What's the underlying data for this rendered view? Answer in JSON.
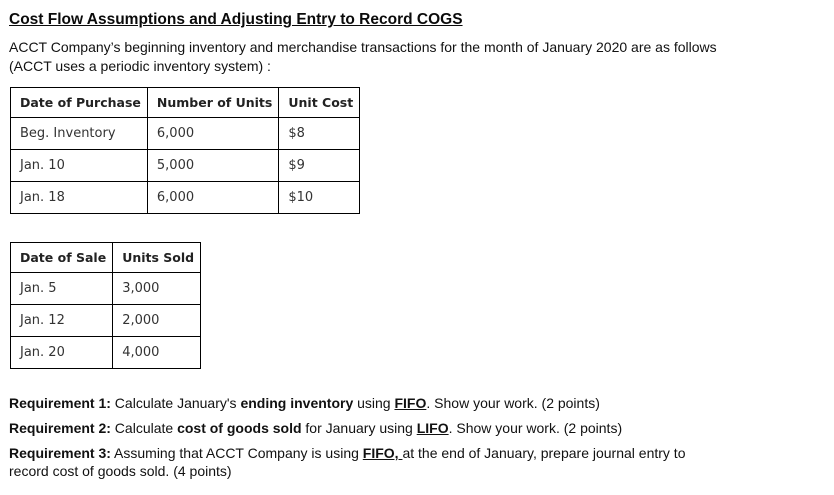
{
  "page": {
    "title": "Cost Flow Assumptions and Adjusting Entry to Record COGS"
  },
  "intro": {
    "segments": [
      {
        "t": "ACCT Company’s beginning inventory and merchandise transactions for the month of January 2020 are as follows"
      },
      {
        "t": "(ACCT uses a periodic inventory system) :",
        "nl": true
      }
    ]
  },
  "purchases_table": {
    "headers": [
      "Date of Purchase",
      "Number of Units",
      "Unit Cost"
    ],
    "rows": [
      [
        "Beg. Inventory",
        "6,000",
        "$8"
      ],
      [
        "Jan. 10",
        "5,000",
        "$9"
      ],
      [
        "Jan. 18",
        "6,000",
        "$10"
      ]
    ]
  },
  "sales_table": {
    "headers": [
      "Date of Sale",
      "Units Sold"
    ],
    "rows": [
      [
        "Jan. 5",
        "3,000"
      ],
      [
        "Jan. 12",
        "2,000"
      ],
      [
        "Jan. 20",
        "4,000"
      ]
    ]
  },
  "requirements": [
    {
      "segments": [
        {
          "t": "Requirement 1:",
          "b": true
        },
        {
          "t": " Calculate January's "
        },
        {
          "t": "ending inventory",
          "b": true
        },
        {
          "t": " using "
        },
        {
          "t": "FIFO",
          "b": true,
          "u": true
        },
        {
          "t": ". Show your work. (2 points)"
        }
      ]
    },
    {
      "segments": [
        {
          "t": "Requirement 2:",
          "b": true
        },
        {
          "t": " Calculate "
        },
        {
          "t": "cost of goods sold",
          "b": true
        },
        {
          "t": " for January using "
        },
        {
          "t": "LIFO",
          "b": true,
          "u": true
        },
        {
          "t": ". Show your work. (2 points)"
        }
      ]
    },
    {
      "segments": [
        {
          "t": "Requirement 3:",
          "b": true
        },
        {
          "t": " Assuming that ACCT Company is using "
        },
        {
          "t": "FIFO, ",
          "b": true,
          "u": true
        },
        {
          "t": "at the end of January, prepare journal entry to"
        },
        {
          "t": "record cost of goods sold. (4 points)",
          "nl": true
        }
      ]
    }
  ],
  "colors": {
    "text": "#111111",
    "table_text": "#333333",
    "table_border": "#000000",
    "background": "#ffffff"
  }
}
